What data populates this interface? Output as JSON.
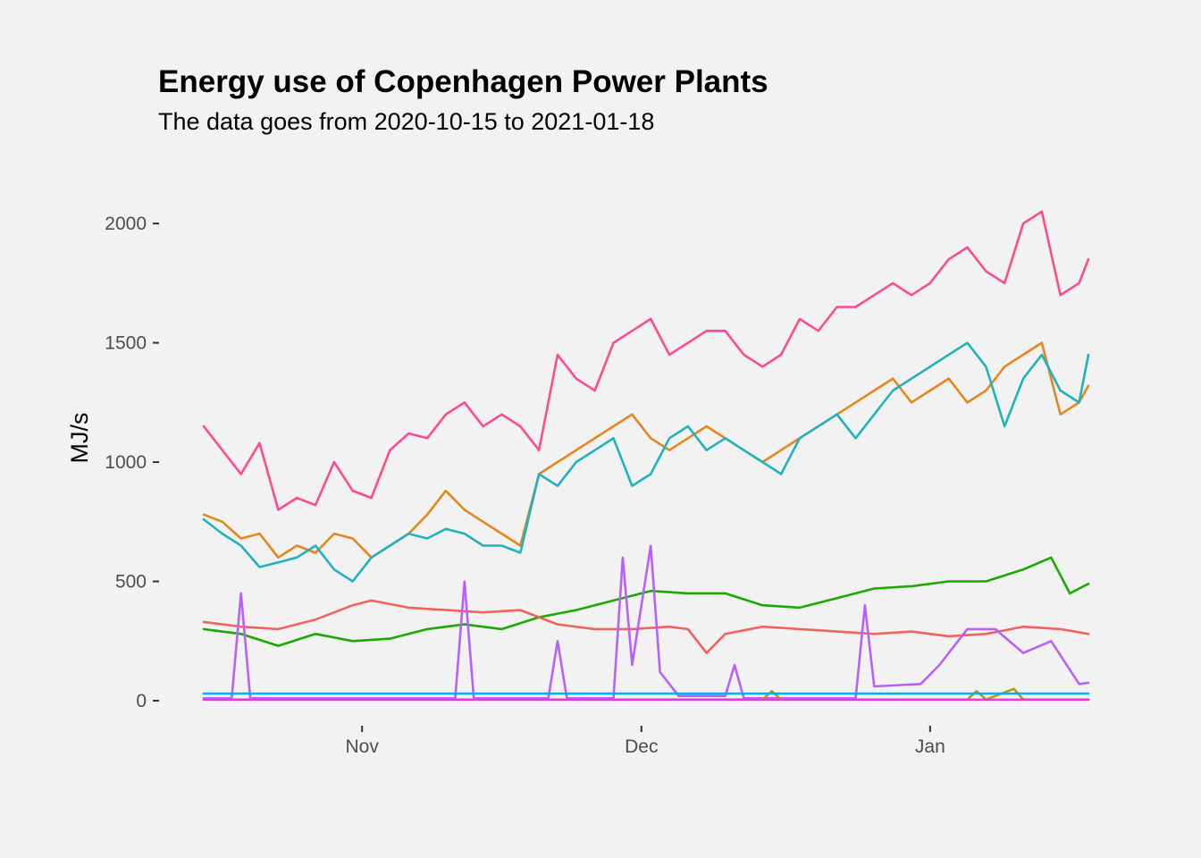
{
  "chart_data": {
    "type": "line",
    "title": "Energy use of Copenhagen Power Plants",
    "subtitle": "The data goes from 2020-10-15 to 2021-01-18",
    "xlabel": "",
    "ylabel": "MJ/s",
    "x_ticks": [
      {
        "label": "Nov",
        "date": "2020-11-01"
      },
      {
        "label": "Dec",
        "date": "2020-12-01"
      },
      {
        "label": "Jan",
        "date": "2021-01-01"
      }
    ],
    "y_ticks": [
      0,
      500,
      1000,
      1500,
      2000
    ],
    "xlim": [
      "2020-10-15",
      "2021-01-18"
    ],
    "ylim": [
      0,
      2300
    ],
    "grid": false,
    "legend": "none",
    "series": [
      {
        "color": "#FF4A91",
        "points": [
          [
            "2020-10-15",
            1150
          ],
          [
            "2020-10-17",
            1050
          ],
          [
            "2020-10-19",
            950
          ],
          [
            "2020-10-21",
            1080
          ],
          [
            "2020-10-23",
            800
          ],
          [
            "2020-10-25",
            850
          ],
          [
            "2020-10-27",
            820
          ],
          [
            "2020-10-29",
            1000
          ],
          [
            "2020-10-31",
            880
          ],
          [
            "2020-11-02",
            850
          ],
          [
            "2020-11-04",
            1050
          ],
          [
            "2020-11-06",
            1120
          ],
          [
            "2020-11-08",
            1100
          ],
          [
            "2020-11-10",
            1200
          ],
          [
            "2020-11-12",
            1250
          ],
          [
            "2020-11-14",
            1150
          ],
          [
            "2020-11-16",
            1200
          ],
          [
            "2020-11-18",
            1150
          ],
          [
            "2020-11-20",
            1050
          ],
          [
            "2020-11-22",
            1450
          ],
          [
            "2020-11-24",
            1350
          ],
          [
            "2020-11-26",
            1300
          ],
          [
            "2020-11-28",
            1500
          ],
          [
            "2020-11-30",
            1550
          ],
          [
            "2020-12-02",
            1600
          ],
          [
            "2020-12-04",
            1450
          ],
          [
            "2020-12-06",
            1500
          ],
          [
            "2020-12-08",
            1550
          ],
          [
            "2020-12-10",
            1550
          ],
          [
            "2020-12-12",
            1450
          ],
          [
            "2020-12-14",
            1400
          ],
          [
            "2020-12-16",
            1450
          ],
          [
            "2020-12-18",
            1600
          ],
          [
            "2020-12-20",
            1550
          ],
          [
            "2020-12-22",
            1650
          ],
          [
            "2020-12-24",
            1650
          ],
          [
            "2020-12-26",
            1700
          ],
          [
            "2020-12-28",
            1750
          ],
          [
            "2020-12-30",
            1700
          ],
          [
            "2021-01-01",
            1750
          ],
          [
            "2021-01-03",
            1850
          ],
          [
            "2021-01-05",
            1900
          ],
          [
            "2021-01-07",
            1800
          ],
          [
            "2021-01-09",
            1750
          ],
          [
            "2021-01-11",
            2000
          ],
          [
            "2021-01-13",
            2050
          ],
          [
            "2021-01-15",
            1700
          ],
          [
            "2021-01-17",
            1750
          ],
          [
            "2021-01-18",
            1850
          ]
        ]
      },
      {
        "color": "#E7861B",
        "points": [
          [
            "2020-10-15",
            780
          ],
          [
            "2020-10-17",
            750
          ],
          [
            "2020-10-19",
            680
          ],
          [
            "2020-10-21",
            700
          ],
          [
            "2020-10-23",
            600
          ],
          [
            "2020-10-25",
            650
          ],
          [
            "2020-10-27",
            620
          ],
          [
            "2020-10-29",
            700
          ],
          [
            "2020-10-31",
            680
          ],
          [
            "2020-11-02",
            600
          ],
          [
            "2020-11-04",
            650
          ],
          [
            "2020-11-06",
            700
          ],
          [
            "2020-11-08",
            780
          ],
          [
            "2020-11-10",
            880
          ],
          [
            "2020-11-12",
            800
          ],
          [
            "2020-11-14",
            750
          ],
          [
            "2020-11-16",
            700
          ],
          [
            "2020-11-18",
            650
          ],
          [
            "2020-11-20",
            950
          ],
          [
            "2020-11-22",
            1000
          ],
          [
            "2020-11-24",
            1050
          ],
          [
            "2020-11-26",
            1100
          ],
          [
            "2020-11-28",
            1150
          ],
          [
            "2020-11-30",
            1200
          ],
          [
            "2020-12-02",
            1100
          ],
          [
            "2020-12-04",
            1050
          ],
          [
            "2020-12-06",
            1100
          ],
          [
            "2020-12-08",
            1150
          ],
          [
            "2020-12-10",
            1100
          ],
          [
            "2020-12-12",
            1050
          ],
          [
            "2020-12-14",
            1000
          ],
          [
            "2020-12-16",
            1050
          ],
          [
            "2020-12-18",
            1100
          ],
          [
            "2020-12-20",
            1150
          ],
          [
            "2020-12-22",
            1200
          ],
          [
            "2020-12-24",
            1250
          ],
          [
            "2020-12-26",
            1300
          ],
          [
            "2020-12-28",
            1350
          ],
          [
            "2020-12-30",
            1250
          ],
          [
            "2021-01-01",
            1300
          ],
          [
            "2021-01-03",
            1350
          ],
          [
            "2021-01-05",
            1250
          ],
          [
            "2021-01-07",
            1300
          ],
          [
            "2021-01-09",
            1400
          ],
          [
            "2021-01-11",
            1450
          ],
          [
            "2021-01-13",
            1500
          ],
          [
            "2021-01-15",
            1200
          ],
          [
            "2021-01-17",
            1250
          ],
          [
            "2021-01-18",
            1320
          ]
        ]
      },
      {
        "color": "#1FB3BE",
        "points": [
          [
            "2020-10-15",
            760
          ],
          [
            "2020-10-17",
            700
          ],
          [
            "2020-10-19",
            650
          ],
          [
            "2020-10-21",
            560
          ],
          [
            "2020-10-23",
            580
          ],
          [
            "2020-10-25",
            600
          ],
          [
            "2020-10-27",
            650
          ],
          [
            "2020-10-29",
            550
          ],
          [
            "2020-10-31",
            500
          ],
          [
            "2020-11-02",
            600
          ],
          [
            "2020-11-04",
            650
          ],
          [
            "2020-11-06",
            700
          ],
          [
            "2020-11-08",
            680
          ],
          [
            "2020-11-10",
            720
          ],
          [
            "2020-11-12",
            700
          ],
          [
            "2020-11-14",
            650
          ],
          [
            "2020-11-16",
            650
          ],
          [
            "2020-11-18",
            620
          ],
          [
            "2020-11-20",
            950
          ],
          [
            "2020-11-22",
            900
          ],
          [
            "2020-11-24",
            1000
          ],
          [
            "2020-11-26",
            1050
          ],
          [
            "2020-11-28",
            1100
          ],
          [
            "2020-11-30",
            900
          ],
          [
            "2020-12-02",
            950
          ],
          [
            "2020-12-04",
            1100
          ],
          [
            "2020-12-06",
            1150
          ],
          [
            "2020-12-08",
            1050
          ],
          [
            "2020-12-10",
            1100
          ],
          [
            "2020-12-12",
            1050
          ],
          [
            "2020-12-14",
            1000
          ],
          [
            "2020-12-16",
            950
          ],
          [
            "2020-12-18",
            1100
          ],
          [
            "2020-12-20",
            1150
          ],
          [
            "2020-12-22",
            1200
          ],
          [
            "2020-12-24",
            1100
          ],
          [
            "2020-12-26",
            1200
          ],
          [
            "2020-12-28",
            1300
          ],
          [
            "2020-12-30",
            1350
          ],
          [
            "2021-01-01",
            1400
          ],
          [
            "2021-01-03",
            1450
          ],
          [
            "2021-01-05",
            1500
          ],
          [
            "2021-01-07",
            1400
          ],
          [
            "2021-01-09",
            1150
          ],
          [
            "2021-01-11",
            1350
          ],
          [
            "2021-01-13",
            1450
          ],
          [
            "2021-01-15",
            1300
          ],
          [
            "2021-01-17",
            1250
          ],
          [
            "2021-01-18",
            1450
          ]
        ]
      },
      {
        "color": "#1BAA00",
        "points": [
          [
            "2020-10-15",
            300
          ],
          [
            "2020-10-19",
            280
          ],
          [
            "2020-10-23",
            230
          ],
          [
            "2020-10-27",
            280
          ],
          [
            "2020-10-31",
            250
          ],
          [
            "2020-11-04",
            260
          ],
          [
            "2020-11-08",
            300
          ],
          [
            "2020-11-12",
            320
          ],
          [
            "2020-11-16",
            300
          ],
          [
            "2020-11-20",
            350
          ],
          [
            "2020-11-24",
            380
          ],
          [
            "2020-11-28",
            420
          ],
          [
            "2020-12-02",
            460
          ],
          [
            "2020-12-06",
            450
          ],
          [
            "2020-12-10",
            450
          ],
          [
            "2020-12-14",
            400
          ],
          [
            "2020-12-18",
            390
          ],
          [
            "2020-12-22",
            430
          ],
          [
            "2020-12-26",
            470
          ],
          [
            "2020-12-30",
            480
          ],
          [
            "2021-01-03",
            500
          ],
          [
            "2021-01-07",
            500
          ],
          [
            "2021-01-11",
            550
          ],
          [
            "2021-01-14",
            600
          ],
          [
            "2021-01-16",
            450
          ],
          [
            "2021-01-18",
            490
          ]
        ]
      },
      {
        "color": "#F0645C",
        "points": [
          [
            "2020-10-15",
            330
          ],
          [
            "2020-10-19",
            310
          ],
          [
            "2020-10-23",
            300
          ],
          [
            "2020-10-27",
            340
          ],
          [
            "2020-10-31",
            400
          ],
          [
            "2020-11-02",
            420
          ],
          [
            "2020-11-06",
            390
          ],
          [
            "2020-11-10",
            380
          ],
          [
            "2020-11-14",
            370
          ],
          [
            "2020-11-18",
            380
          ],
          [
            "2020-11-22",
            320
          ],
          [
            "2020-11-26",
            300
          ],
          [
            "2020-11-30",
            300
          ],
          [
            "2020-12-04",
            310
          ],
          [
            "2020-12-06",
            300
          ],
          [
            "2020-12-08",
            200
          ],
          [
            "2020-12-10",
            280
          ],
          [
            "2020-12-14",
            310
          ],
          [
            "2020-12-18",
            300
          ],
          [
            "2020-12-22",
            290
          ],
          [
            "2020-12-26",
            280
          ],
          [
            "2020-12-30",
            290
          ],
          [
            "2021-01-03",
            270
          ],
          [
            "2021-01-07",
            280
          ],
          [
            "2021-01-11",
            310
          ],
          [
            "2021-01-15",
            300
          ],
          [
            "2021-01-18",
            280
          ]
        ]
      },
      {
        "color": "#B760FF",
        "points": [
          [
            "2020-10-15",
            10
          ],
          [
            "2020-10-18",
            10
          ],
          [
            "2020-10-19",
            450
          ],
          [
            "2020-10-20",
            10
          ],
          [
            "2020-11-11",
            10
          ],
          [
            "2020-11-12",
            500
          ],
          [
            "2020-11-13",
            10
          ],
          [
            "2020-11-21",
            10
          ],
          [
            "2020-11-22",
            250
          ],
          [
            "2020-11-23",
            10
          ],
          [
            "2020-11-28",
            10
          ],
          [
            "2020-11-29",
            600
          ],
          [
            "2020-11-30",
            150
          ],
          [
            "2020-12-02",
            650
          ],
          [
            "2020-12-03",
            120
          ],
          [
            "2020-12-05",
            20
          ],
          [
            "2020-12-10",
            20
          ],
          [
            "2020-12-11",
            150
          ],
          [
            "2020-12-12",
            10
          ],
          [
            "2020-12-24",
            10
          ],
          [
            "2020-12-25",
            400
          ],
          [
            "2020-12-26",
            60
          ],
          [
            "2020-12-31",
            70
          ],
          [
            "2021-01-02",
            150
          ],
          [
            "2021-01-05",
            300
          ],
          [
            "2021-01-08",
            300
          ],
          [
            "2021-01-11",
            200
          ],
          [
            "2021-01-14",
            250
          ],
          [
            "2021-01-17",
            70
          ],
          [
            "2021-01-18",
            75
          ]
        ]
      },
      {
        "color": "#B89900",
        "points": [
          [
            "2020-10-15",
            5
          ],
          [
            "2020-12-14",
            5
          ],
          [
            "2020-12-15",
            40
          ],
          [
            "2020-12-16",
            5
          ],
          [
            "2021-01-05",
            5
          ],
          [
            "2021-01-06",
            40
          ],
          [
            "2021-01-07",
            5
          ],
          [
            "2021-01-10",
            50
          ],
          [
            "2021-01-11",
            5
          ],
          [
            "2021-01-18",
            5
          ]
        ]
      },
      {
        "color": "#00AFFF",
        "points": [
          [
            "2020-10-15",
            30
          ],
          [
            "2021-01-18",
            30
          ]
        ]
      },
      {
        "color": "#E839E0",
        "points": [
          [
            "2020-10-15",
            4
          ],
          [
            "2021-01-18",
            4
          ]
        ]
      }
    ]
  }
}
